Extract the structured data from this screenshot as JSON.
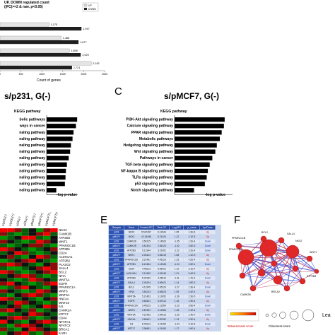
{
  "panel_a": {
    "title_line1": "UP, DOWN regulated count",
    "title_line2": "(|FC|>=2 & raw. p<0.05)",
    "legend": [
      "UP",
      "DOWN"
    ],
    "xlabel": "Count of genes",
    "x_ticks": [
      "0",
      "500",
      "1000",
      "1500",
      "2000",
      "2500"
    ]
  },
  "panel_b": {
    "title": "s/p231, G(-)",
    "subtitle": "KEGG pathway",
    "xlabel": "-log p-value",
    "labels": [
      "bolic pathways",
      "ways in cancer",
      "naling pathway",
      "naling pathway",
      "naling pathway",
      "naling pathway",
      "naling pathway",
      "naling pathway",
      "naling pathway",
      "naling pathway",
      "naling pathway",
      "naling pathway"
    ]
  },
  "panel_c": {
    "letter": "C",
    "title": "s/pMCF7, G(-)",
    "subtitle": "KEGG pathway",
    "xlabel": "-log p-value",
    "labels": [
      "PI3K-Akt signaling pathway",
      "Calcium signaling pathway",
      "PPAR signaling pathway",
      "Metabolic pathways",
      "Hedgehog signaling pathway",
      "Wnt signaling pathway",
      "Pathways in cancer",
      "TGF-beta signaling pathway",
      "NF-kappa B signaling pathway",
      "TLRs signaling pathway",
      "p53 signaling pathway",
      "Notch signaling pathway"
    ]
  },
  "panel_d": {
    "genes": [
      "NKX2",
      "CAMK2B",
      "ATP2B3",
      "WNT1",
      "PPARGC1B",
      "ATP2B1",
      "CD24",
      "ALDH1A1",
      "ATP2B2",
      "PLA2G2",
      "SALL4",
      "BCL2",
      "NFIA",
      "WNT5A",
      "EGFR",
      "PPARGC1A",
      "WNT6",
      "WNT3A",
      "HNF4A",
      "WNT16",
      "IL6",
      "CAMK2A",
      "KRT17",
      "CD44",
      "NFATC1",
      "NFATC2",
      "BRCA1",
      "IL1R1"
    ]
  },
  "panel_e": {
    "letter": "E",
    "headers": [
      "Sample",
      "Gene",
      "Control.GC",
      "Test.GC",
      "Log2FC",
      "p_value",
      "Up/Down"
    ],
    "rows": [
      [
        "p231",
        "NKX2",
        "5.547497",
        "6.12344",
        "1.05",
        "1.3E-6",
        "Up"
      ],
      [
        "pMCF7",
        "NKX2",
        "4.124456",
        "5.21424",
        "1.12",
        "2.1E-5",
        "Up"
      ],
      [
        "p231",
        "CAMK2B",
        "3.54215",
        "2.14523",
        "-1.35",
        "1.2E-4",
        "Down"
      ],
      [
        "pMCF7",
        "CAMK2B",
        "4.51324",
        "2.54123",
        "-1.42",
        "3.5E-5",
        "Down"
      ],
      [
        "p231",
        "ATP2B3",
        "5.12344",
        "3.21451",
        "-1.22",
        "2.2E-4",
        "Down"
      ],
      [
        "pMCF7",
        "WNT1",
        "2.45124",
        "3.54213",
        "1.08",
        "1.1E-3",
        "Up"
      ],
      [
        "p231",
        "PPARGC1B",
        "3.21451",
        "4.45123",
        "1.15",
        "4.2E-4",
        "Up"
      ],
      [
        "pMCF7",
        "ATP2B1",
        "6.12454",
        "4.12345",
        "-1.24",
        "2.5E-4",
        "Down"
      ],
      [
        "p231",
        "CD24",
        "4.45213",
        "5.65421",
        "1.12",
        "3.1E-4",
        "Up"
      ],
      [
        "pMCF7",
        "ALDH1A1",
        "3.12452",
        "4.51245",
        "1.21",
        "5.4E-5",
        "Up"
      ],
      [
        "p231",
        "ATP2B2",
        "5.42153",
        "3.45213",
        "-1.31",
        "1.7E-4",
        "Down"
      ],
      [
        "pMCF7",
        "SALL4",
        "2.45124",
        "3.65421",
        "1.14",
        "2.8E-3",
        "Up"
      ],
      [
        "p231",
        "BCL2",
        "4.12345",
        "2.45123",
        "-1.27",
        "1.3E-4",
        "Down"
      ],
      [
        "pMCF7",
        "NFIA",
        "3.54213",
        "4.65423",
        "1.09",
        "4.4E-4",
        "Up"
      ],
      [
        "p231",
        "WNT5A",
        "5.21453",
        "3.12452",
        "-1.36",
        "2.3E-5",
        "Down"
      ],
      [
        "pMCF7",
        "EGFR",
        "4.65421",
        "5.87412",
        "1.16",
        "1.9E-4",
        "Up"
      ],
      [
        "p231",
        "PPARGC1A",
        "3.45213",
        "2.12354",
        "-1.23",
        "3.6E-4",
        "Down"
      ],
      [
        "pMCF7",
        "WNT6",
        "2.87451",
        "4.12354",
        "1.18",
        "2.1E-4",
        "Up"
      ],
      [
        "p231",
        "WNT3A",
        "4.21453",
        "2.54213",
        "-1.29",
        "1.4E-4",
        "Down"
      ],
      [
        "pMCF7",
        "HNF4A",
        "3.65421",
        "4.87452",
        "1.13",
        "3.3E-4",
        "Up"
      ],
      [
        "p231",
        "IL6",
        "5.45213",
        "3.21453",
        "-1.34",
        "9.1E-5",
        "Down"
      ],
      [
        "pMCF7",
        "KRT17",
        "2.98451",
        "4.21453",
        "1.17",
        "2.6E-4",
        "Up"
      ]
    ]
  },
  "panel_f": {
    "letter": "F",
    "nodes": [
      "PPARGC1B",
      "BCL2",
      "SALL4",
      "PPARGC1A",
      "BRCA2",
      "CAMK2B",
      "NKX2",
      "WNT1",
      "ATP2B3"
    ],
    "legend_betweenness": "Betweenness score",
    "legend_closeness": "Closeness score",
    "legend_cut": "Lea"
  },
  "colors": {
    "bar_gray": "#8c8c8c",
    "heat_red": "#e02020",
    "heat_green": "#0a8a1a",
    "table_header": "#2b4fa8",
    "table_row_a": "#dfe7f5",
    "table_row_b": "#c9d6ee",
    "up_red": "#d01414",
    "node_red": "#e02828",
    "edge_blue": "#3a4fd8"
  },
  "chart_data": [
    {
      "type": "bar",
      "orientation": "horizontal",
      "title": "UP, DOWN regulated count (|FC|>=2 & raw. p<0.05)",
      "xlabel": "Count of genes",
      "xlim": [
        0,
        2500
      ],
      "series": [
        {
          "name": "UP",
          "values": [
            1175,
            1466,
            1659,
            2182
          ]
        },
        {
          "name": "DOWN",
          "values": [
            1947,
            1877,
            1929,
            1721
          ]
        }
      ],
      "data_labels": [
        "1,175",
        "1,947",
        "1,466",
        "1,877",
        "1,659",
        "1,929",
        "2,182",
        "1,721"
      ]
    },
    {
      "type": "bar",
      "orientation": "horizontal",
      "title": "s/p231, G(-)",
      "subtitle": "KEGG pathway",
      "xlabel": "-log p-value",
      "categories": [
        "bolic pathways",
        "ways in cancer",
        "naling pathway",
        "naling pathway",
        "naling pathway",
        "naling pathway",
        "naling pathway",
        "naling pathway",
        "naling pathway",
        "naling pathway",
        "naling pathway",
        "naling pathway"
      ],
      "values": [
        15.2,
        14.6,
        13.4,
        12.9,
        12.1,
        11.7,
        11.0,
        10.1,
        9.6,
        9.4,
        9.1,
        4.8
      ]
    },
    {
      "type": "bar",
      "orientation": "horizontal",
      "title": "s/pMCF7, G(-)",
      "subtitle": "KEGG pathway",
      "xlabel": "-log p-value",
      "categories": [
        "PI3K-Akt signaling pathway",
        "Calcium signaling pathway",
        "PPAR signaling pathway",
        "Metabolic pathways",
        "Hedgehog signaling pathway",
        "Wnt signaling pathway",
        "Pathways in cancer",
        "TGF-beta signaling pathway",
        "NF-kappa B signaling pathway",
        "TLRs signaling pathway",
        "p53 signaling pathway",
        "Notch signaling pathway"
      ],
      "values": [
        13.4,
        13.2,
        12.6,
        12.1,
        11.3,
        10.9,
        10.1,
        9.4,
        8.9,
        8.6,
        8.1,
        5.2
      ]
    }
  ]
}
